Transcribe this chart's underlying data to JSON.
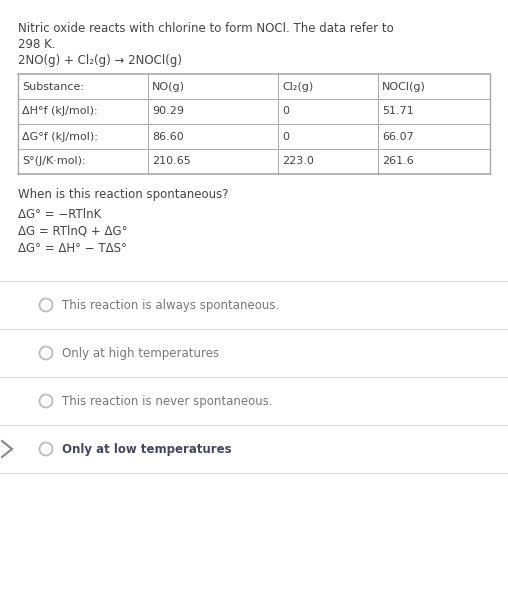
{
  "bg_color": "#ffffff",
  "title_line1": "Nitric oxide reacts with chlorine to form NOCl. The data refer to",
  "title_line2": "298 K.",
  "reaction": "2NO(g) + Cl₂(g) → 2NOCl(g)",
  "table_headers": [
    "Substance:",
    "NO(g)",
    "Cl₂(g)",
    "NOCl(g)"
  ],
  "table_rows": [
    [
      "ΔH°f (kJ/mol):",
      "90.29",
      "0",
      "51.71"
    ],
    [
      "ΔG°f (kJ/mol):",
      "86.60",
      "0",
      "66.07"
    ],
    [
      "S°(J/K·mol):",
      "210.65",
      "223.0",
      "261.6"
    ]
  ],
  "question": "When is this reaction spontaneous?",
  "equations": [
    "ΔG° = −RTlnK",
    "ΔG = RTlnQ + ΔG°",
    "ΔG° = ΔH° − TΔS°"
  ],
  "options": [
    {
      "text": "This reaction is always spontaneous.",
      "bold": false,
      "selected": false
    },
    {
      "text": "Only at high temperatures",
      "bold": false,
      "selected": false
    },
    {
      "text": "This reaction is never spontaneous.",
      "bold": false,
      "selected": false
    },
    {
      "text": "Only at low temperatures",
      "bold": true,
      "selected": false
    }
  ],
  "text_color": "#444444",
  "light_text_color": "#888888",
  "table_border_color": "#aaaaaa",
  "radio_color": "#cccccc",
  "radio_border_color": "#bbbbbb",
  "divider_color": "#dddddd",
  "arrow_color": "#888888",
  "option_text_color": "#777777",
  "selected_text_color": "#444466"
}
